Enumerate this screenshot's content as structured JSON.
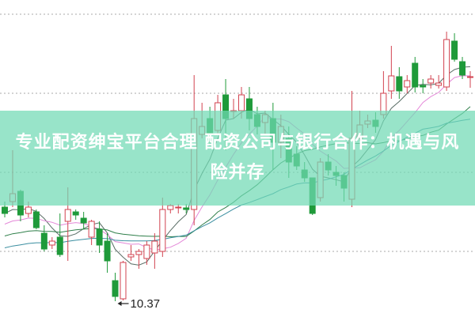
{
  "title": "专业配资绅宝平台合理 配资公司与银行合作：机遇与风险并存",
  "colors": {
    "up": "#d2424f",
    "down": "#1f9a3a",
    "banner": "#8fe2c6",
    "grid": "#aaaaaa",
    "ma": [
      "#5a6e66",
      "#e488d8",
      "#2f7f4a",
      "#3a8ea0"
    ]
  },
  "chart_data": {
    "type": "candlestick",
    "title": "",
    "xlabel": "",
    "ylabel": "",
    "ylim": [
      10.18,
      14.18
    ],
    "grid": true,
    "gridlines": [
      11,
      12,
      13,
      14
    ],
    "moving_averages": [
      5,
      10,
      20,
      30
    ],
    "annotation": {
      "label": "10.37",
      "candle_index": 14
    },
    "candles": [
      [
        11.56,
        11.48,
        11.63,
        11.43
      ],
      [
        11.63,
        11.73,
        12.28,
        11.56
      ],
      [
        11.76,
        11.46,
        11.78,
        11.38
      ],
      [
        11.48,
        11.56,
        11.63,
        11.43
      ],
      [
        11.5,
        11.3,
        11.53,
        11.28
      ],
      [
        11.23,
        11.03,
        11.33,
        11.0
      ],
      [
        11.08,
        11.13,
        11.18,
        11.03
      ],
      [
        11.18,
        10.96,
        11.48,
        10.93
      ],
      [
        11.38,
        11.53,
        11.81,
        10.88
      ],
      [
        11.5,
        11.46,
        11.53,
        11.4
      ],
      [
        11.42,
        11.36,
        11.5,
        11.28
      ],
      [
        11.18,
        11.38,
        11.4,
        11.08
      ],
      [
        11.28,
        11.08,
        11.38,
        10.98
      ],
      [
        11.13,
        10.88,
        11.23,
        10.73
      ],
      [
        10.63,
        10.43,
        10.73,
        10.37
      ],
      [
        10.4,
        10.86,
        10.88,
        10.38
      ],
      [
        10.93,
        10.96,
        11.08,
        10.88
      ],
      [
        10.96,
        11.0,
        11.03,
        10.78
      ],
      [
        10.91,
        11.08,
        11.13,
        10.83
      ],
      [
        10.98,
        11.13,
        11.23,
        10.78
      ],
      [
        11.0,
        11.53,
        11.68,
        10.93
      ],
      [
        11.53,
        11.58,
        11.6,
        11.48
      ],
      [
        11.56,
        11.56,
        11.6,
        11.48
      ],
      [
        11.55,
        11.53,
        11.6,
        11.48
      ],
      [
        11.53,
        12.68,
        13.23,
        11.33
      ],
      [
        12.48,
        12.58,
        12.88,
        12.43
      ],
      [
        12.68,
        12.48,
        12.83,
        12.33
      ],
      [
        12.53,
        12.88,
        12.98,
        12.48
      ],
      [
        12.98,
        12.68,
        13.18,
        12.28
      ],
      [
        12.78,
        12.78,
        12.93,
        12.68
      ],
      [
        12.78,
        12.98,
        13.08,
        12.68
      ],
      [
        12.93,
        12.68,
        13.08,
        12.53
      ],
      [
        12.73,
        12.58,
        12.83,
        12.48
      ],
      [
        12.63,
        12.73,
        12.78,
        12.48
      ],
      [
        12.68,
        12.38,
        12.88,
        12.03
      ],
      [
        12.38,
        12.58,
        12.73,
        12.18
      ],
      [
        12.43,
        12.13,
        12.58,
        11.93
      ],
      [
        12.23,
        12.08,
        12.33,
        12.03
      ],
      [
        12.03,
        11.93,
        12.13,
        11.88
      ],
      [
        11.93,
        11.48,
        11.93,
        11.46
      ],
      [
        11.68,
        12.13,
        12.18,
        11.63
      ],
      [
        12.13,
        12.03,
        12.23,
        11.96
      ],
      [
        12.0,
        11.96,
        12.08,
        11.83
      ],
      [
        11.96,
        11.8,
        12.0,
        11.63
      ],
      [
        11.66,
        12.43,
        13.03,
        11.56
      ],
      [
        12.43,
        12.6,
        12.78,
        12.4
      ],
      [
        12.61,
        12.65,
        12.73,
        12.56
      ],
      [
        12.66,
        12.58,
        12.76,
        12.5
      ],
      [
        12.73,
        13.0,
        13.28,
        12.68
      ],
      [
        13.03,
        13.22,
        13.6,
        12.93
      ],
      [
        13.21,
        13.03,
        13.33,
        12.93
      ],
      [
        13.08,
        13.16,
        13.23,
        13.0
      ],
      [
        13.38,
        13.08,
        13.46,
        13.01
      ],
      [
        13.1,
        13.08,
        13.18,
        13.0
      ],
      [
        13.13,
        13.18,
        13.23,
        13.06
      ],
      [
        13.1,
        13.13,
        13.23,
        13.06
      ],
      [
        13.08,
        13.68,
        13.78,
        13.03
      ],
      [
        13.66,
        13.43,
        13.76,
        13.4
      ],
      [
        13.4,
        13.23,
        13.46,
        13.18
      ],
      [
        13.21,
        13.21,
        13.28,
        13.07
      ]
    ]
  }
}
